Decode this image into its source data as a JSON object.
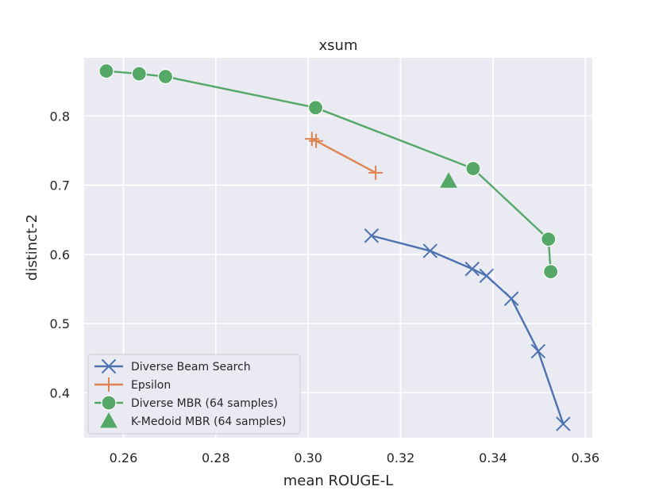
{
  "chart_data": {
    "type": "line",
    "title": "xsum",
    "xlabel": "mean ROUGE-L",
    "ylabel": "distinct-2",
    "xlim": [
      0.2515,
      0.3615
    ],
    "ylim": [
      0.335,
      0.884
    ],
    "xticks": [
      0.26,
      0.28,
      0.3,
      0.32,
      0.34,
      0.36
    ],
    "xtick_labels": [
      "0.26",
      "0.28",
      "0.30",
      "0.32",
      "0.34",
      "0.36"
    ],
    "yticks": [
      0.4,
      0.5,
      0.6,
      0.7,
      0.8
    ],
    "ytick_labels": [
      "0.4",
      "0.5",
      "0.6",
      "0.7",
      "0.8"
    ],
    "grid": true,
    "legend_position": "lower-left",
    "background": "#eaeaf2",
    "series": [
      {
        "name": "Diverse Beam Search",
        "color": "#4c72b0",
        "marker": "x",
        "line": true,
        "points": [
          [
            0.3137,
            0.627
          ],
          [
            0.3264,
            0.605
          ],
          [
            0.3355,
            0.579
          ],
          [
            0.3386,
            0.569
          ],
          [
            0.344,
            0.536
          ],
          [
            0.3498,
            0.46
          ],
          [
            0.3552,
            0.355
          ]
        ]
      },
      {
        "name": "Epsilon",
        "color": "#dd8452",
        "marker": "plus",
        "line": true,
        "points": [
          [
            0.3008,
            0.767
          ],
          [
            0.3017,
            0.764
          ],
          [
            0.3146,
            0.718
          ]
        ]
      },
      {
        "name": "Diverse MBR (64 samples)",
        "color": "#55a868",
        "marker": "circle",
        "line": true,
        "points": [
          [
            0.2563,
            0.865
          ],
          [
            0.2634,
            0.861
          ],
          [
            0.2691,
            0.857
          ],
          [
            0.3016,
            0.812
          ],
          [
            0.3357,
            0.724
          ],
          [
            0.352,
            0.622
          ],
          [
            0.3525,
            0.575
          ]
        ]
      },
      {
        "name": "K-Medoid MBR (64 samples)",
        "color": "#55a868",
        "marker": "triangle",
        "line": false,
        "points": [
          [
            0.3304,
            0.706
          ]
        ]
      }
    ]
  }
}
